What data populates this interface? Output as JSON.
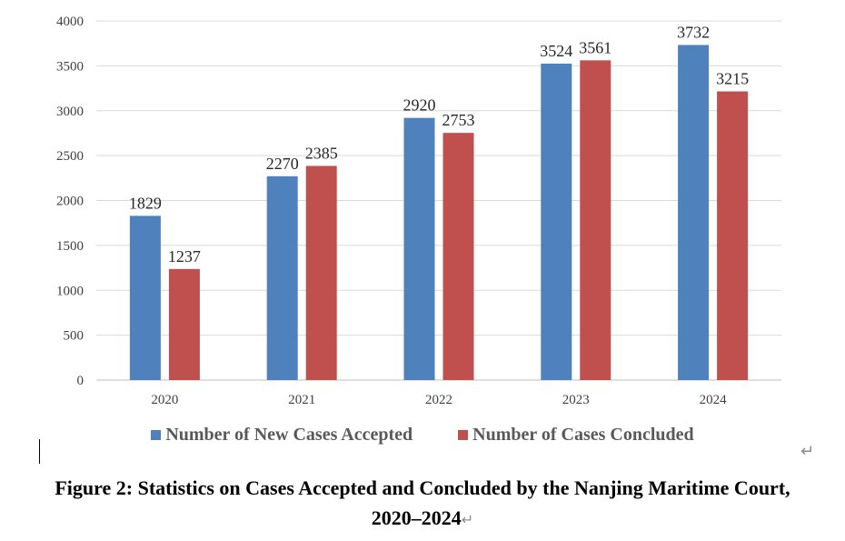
{
  "chart_data": {
    "type": "bar",
    "categories": [
      "2020",
      "2021",
      "2022",
      "2023",
      "2024"
    ],
    "series": [
      {
        "name": "Number of New Cases Accepted",
        "color": "#4f81bd",
        "values": [
          1829,
          2270,
          2920,
          3524,
          3732
        ]
      },
      {
        "name": "Number of Cases Concluded",
        "color": "#c0504d",
        "values": [
          1237,
          2385,
          2753,
          3561,
          3215
        ]
      }
    ],
    "ylim": [
      0,
      4000
    ],
    "yticks": [
      0,
      500,
      1000,
      1500,
      2000,
      2500,
      3000,
      3500,
      4000
    ],
    "grid": true,
    "legend_position": "bottom",
    "title": "Figure 2: Statistics on Cases Accepted and Concluded by the Nanjing Maritime Court, 2020–2024",
    "xlabel": "",
    "ylabel": ""
  },
  "caption": {
    "line1": "Figure 2: Statistics on Cases Accepted and Concluded by the Nanjing Maritime Court,",
    "line2": "2020–2024",
    "return_glyph": "↵"
  },
  "editor": {
    "paragraph_mark": "↵"
  }
}
